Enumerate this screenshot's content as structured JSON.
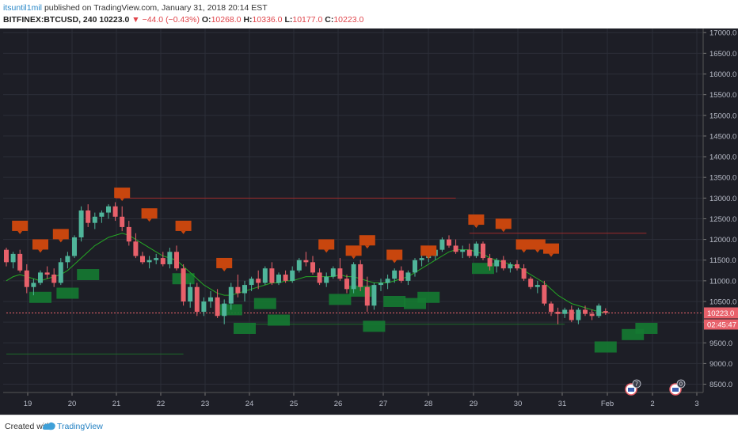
{
  "header": {
    "user": "itsuntil1mil",
    "published_text": "published on TradingView.com, January 31, 2018 20:14 EST",
    "symbol": "BITFINEX:BTCUSD, 240",
    "last": "10223.0",
    "change": "−44.0 (−0.43%)",
    "o_label": "O:",
    "o": "10268.0",
    "h_label": "H:",
    "h": "10336.0",
    "l_label": "L:",
    "l": "10177.0",
    "c_label": "C:",
    "c": "10223.0"
  },
  "footer": {
    "created_with": "Created with",
    "brand": "TradingView"
  },
  "price_label": "10223.0",
  "countdown_label": "02:45:47",
  "event_badges": [
    "7",
    "0"
  ],
  "colors": {
    "background": "#1d1e26",
    "grid": "#2c2e38",
    "up": "#4fb59a",
    "down": "#e8616b",
    "ma": "#25a825",
    "sell_box": "#c8460e",
    "buy_box": "#157a32",
    "resistance_line": "#9b2a2a",
    "support_line": "#1f6a2a"
  },
  "chart_data": {
    "type": "candlestick",
    "title": "BITFINEX:BTCUSD, 240",
    "ylim": [
      8300,
      17100
    ],
    "y_ticks": [
      8500,
      9000,
      9500,
      10000,
      10500,
      11000,
      11500,
      12000,
      12500,
      13000,
      13500,
      14000,
      14500,
      15000,
      15500,
      16000,
      16500,
      17000
    ],
    "y_tick_labels": [
      "8500.0",
      "9000.0",
      "9500.0",
      "10000.0",
      "10500.0",
      "11000.0",
      "11500.0",
      "12000.0",
      "12500.0",
      "13000.0",
      "13500.0",
      "14000.0",
      "14500.0",
      "15000.0",
      "15500.0",
      "16000.0",
      "16500.0",
      "17000.0"
    ],
    "x_labels": [
      "19",
      "20",
      "21",
      "22",
      "23",
      "24",
      "25",
      "26",
      "27",
      "28",
      "29",
      "30",
      "31",
      "Feb",
      "2",
      "3"
    ],
    "candles": [
      [
        11750,
        11800,
        11350,
        11450
      ],
      [
        11450,
        11700,
        11300,
        11650
      ],
      [
        11650,
        11750,
        11200,
        11250
      ],
      [
        11250,
        11400,
        10700,
        10850
      ],
      [
        10850,
        11050,
        10650,
        10950
      ],
      [
        10950,
        11250,
        10900,
        11200
      ],
      [
        11200,
        11350,
        11050,
        11150
      ],
      [
        11150,
        11300,
        10850,
        10950
      ],
      [
        10950,
        11550,
        10900,
        11450
      ],
      [
        11450,
        11700,
        11300,
        11600
      ],
      [
        11600,
        12100,
        11550,
        12050
      ],
      [
        12050,
        12800,
        11950,
        12700
      ],
      [
        12700,
        12850,
        12300,
        12400
      ],
      [
        12400,
        12650,
        12250,
        12550
      ],
      [
        12550,
        12700,
        12400,
        12650
      ],
      [
        12650,
        12850,
        12500,
        12800
      ],
      [
        12800,
        12900,
        12450,
        12550
      ],
      [
        12550,
        12800,
        12200,
        12300
      ],
      [
        12300,
        12450,
        11850,
        11950
      ],
      [
        11950,
        12150,
        11550,
        11600
      ],
      [
        11600,
        11700,
        11400,
        11450
      ],
      [
        11450,
        11600,
        11300,
        11500
      ],
      [
        11500,
        11650,
        11400,
        11550
      ],
      [
        11550,
        11700,
        11350,
        11400
      ],
      [
        11400,
        11800,
        11300,
        11700
      ],
      [
        11700,
        11850,
        11250,
        11300
      ],
      [
        11300,
        11400,
        10400,
        10500
      ],
      [
        10500,
        10950,
        10350,
        10850
      ],
      [
        10850,
        10950,
        10150,
        10250
      ],
      [
        10250,
        10600,
        10150,
        10500
      ],
      [
        10500,
        10750,
        10350,
        10600
      ],
      [
        10600,
        10800,
        10100,
        10150
      ],
      [
        10150,
        10550,
        9950,
        10450
      ],
      [
        10450,
        10950,
        10300,
        10850
      ],
      [
        10850,
        11150,
        10600,
        10700
      ],
      [
        10700,
        11000,
        10500,
        10900
      ],
      [
        10900,
        11100,
        10750,
        11050
      ],
      [
        11050,
        11250,
        10800,
        10950
      ],
      [
        10950,
        11350,
        10900,
        11300
      ],
      [
        11300,
        11450,
        10900,
        10950
      ],
      [
        10950,
        11200,
        10900,
        11150
      ],
      [
        11150,
        11250,
        10950,
        11000
      ],
      [
        11000,
        11350,
        10950,
        11250
      ],
      [
        11250,
        11550,
        11200,
        11500
      ],
      [
        11500,
        11700,
        11350,
        11450
      ],
      [
        11450,
        11600,
        11150,
        11200
      ],
      [
        11200,
        11300,
        10900,
        10950
      ],
      [
        10950,
        11200,
        10850,
        11100
      ],
      [
        11100,
        11350,
        11050,
        11300
      ],
      [
        11300,
        11550,
        11000,
        11050
      ],
      [
        11050,
        11150,
        10700,
        10800
      ],
      [
        10800,
        11450,
        10700,
        11400
      ],
      [
        11400,
        11500,
        10750,
        10850
      ],
      [
        10850,
        11100,
        10250,
        10400
      ],
      [
        10400,
        10950,
        10300,
        10900
      ],
      [
        10900,
        11050,
        10750,
        10950
      ],
      [
        10950,
        11150,
        10800,
        11050
      ],
      [
        11050,
        11300,
        10950,
        11250
      ],
      [
        11250,
        11350,
        10950,
        11000
      ],
      [
        11000,
        11250,
        10900,
        11200
      ],
      [
        11200,
        11550,
        11100,
        11500
      ],
      [
        11500,
        11650,
        11350,
        11550
      ],
      [
        11550,
        11650,
        11450,
        11600
      ],
      [
        11600,
        11800,
        11500,
        11750
      ],
      [
        11750,
        12050,
        11700,
        12000
      ],
      [
        12000,
        12100,
        11800,
        11850
      ],
      [
        11850,
        12000,
        11650,
        11700
      ],
      [
        11700,
        11850,
        11550,
        11750
      ],
      [
        11750,
        11900,
        11550,
        11600
      ],
      [
        11600,
        11950,
        11550,
        11900
      ],
      [
        11900,
        11950,
        11500,
        11550
      ],
      [
        11550,
        11650,
        11250,
        11350
      ],
      [
        11350,
        11550,
        11200,
        11500
      ],
      [
        11500,
        11600,
        11250,
        11300
      ],
      [
        11300,
        11450,
        11200,
        11400
      ],
      [
        11400,
        11500,
        11250,
        11300
      ],
      [
        11300,
        11400,
        11000,
        11050
      ],
      [
        11050,
        11100,
        10800,
        10850
      ],
      [
        10850,
        11000,
        10700,
        10900
      ],
      [
        10900,
        11000,
        10400,
        10450
      ],
      [
        10450,
        10500,
        10150,
        10250
      ],
      [
        10250,
        10350,
        9950,
        10200
      ],
      [
        10200,
        10350,
        10100,
        10300
      ],
      [
        10300,
        10400,
        10000,
        10050
      ],
      [
        10050,
        10350,
        9950,
        10300
      ],
      [
        10300,
        10400,
        10150,
        10200
      ],
      [
        10200,
        10300,
        10050,
        10150
      ],
      [
        10150,
        10450,
        10100,
        10400
      ],
      [
        10268,
        10336,
        10177,
        10223
      ]
    ],
    "moving_average": [
      11000,
      11100,
      11150,
      11100,
      11050,
      11000,
      11050,
      11100,
      11150,
      11250,
      11400,
      11550,
      11700,
      11850,
      11950,
      12050,
      12100,
      12150,
      12100,
      12000,
      11900,
      11800,
      11700,
      11600,
      11550,
      11500,
      11350,
      11200,
      11050,
      10900,
      10800,
      10700,
      10650,
      10650,
      10700,
      10750,
      10800,
      10850,
      10900,
      10950,
      10950,
      11000,
      11000,
      11050,
      11100,
      11100,
      11100,
      11100,
      11100,
      11150,
      11100,
      11100,
      11050,
      11000,
      10950,
      10950,
      10950,
      11000,
      11050,
      11100,
      11200,
      11300,
      11400,
      11500,
      11600,
      11700,
      11750,
      11750,
      11750,
      11700,
      11650,
      11550,
      11500,
      11450,
      11400,
      11350,
      11250,
      11150,
      11050,
      10950,
      10800,
      10650,
      10550,
      10450,
      10400,
      10350,
      10300,
      10250,
      10230
    ],
    "horizontal_lines": [
      {
        "price": 13000,
        "from": 16,
        "to": 66,
        "kind": "resistance"
      },
      {
        "price": 12150,
        "from": 68,
        "to": 94,
        "kind": "resistance"
      },
      {
        "price": 10223,
        "from": 0,
        "to": 110,
        "kind": "last-price"
      },
      {
        "price": 9950,
        "from": 36,
        "to": 82,
        "kind": "support"
      },
      {
        "price": 9230,
        "from": 0,
        "to": 26,
        "kind": "support"
      }
    ],
    "sell_signals": [
      [
        2,
        12300
      ],
      [
        5,
        11850
      ],
      [
        8,
        12100
      ],
      [
        17,
        13100
      ],
      [
        21,
        12600
      ],
      [
        26,
        12300
      ],
      [
        32,
        11400
      ],
      [
        47,
        11850
      ],
      [
        51,
        11700
      ],
      [
        53,
        11950
      ],
      [
        57,
        11600
      ],
      [
        62,
        11700
      ],
      [
        69,
        12450
      ],
      [
        73,
        12350
      ],
      [
        76,
        11850
      ],
      [
        78,
        11850
      ],
      [
        80,
        11750
      ]
    ],
    "buy_signals": [
      [
        5,
        10600
      ],
      [
        9,
        10700
      ],
      [
        12,
        11150
      ],
      [
        26,
        11050
      ],
      [
        33,
        10300
      ],
      [
        35,
        9850
      ],
      [
        38,
        10450
      ],
      [
        40,
        10050
      ],
      [
        49,
        10550
      ],
      [
        52,
        10750
      ],
      [
        54,
        9900
      ],
      [
        57,
        10500
      ],
      [
        60,
        10450
      ],
      [
        62,
        10600
      ],
      [
        70,
        11300
      ],
      [
        88,
        9400
      ],
      [
        92,
        9700
      ],
      [
        94,
        9850
      ]
    ]
  }
}
